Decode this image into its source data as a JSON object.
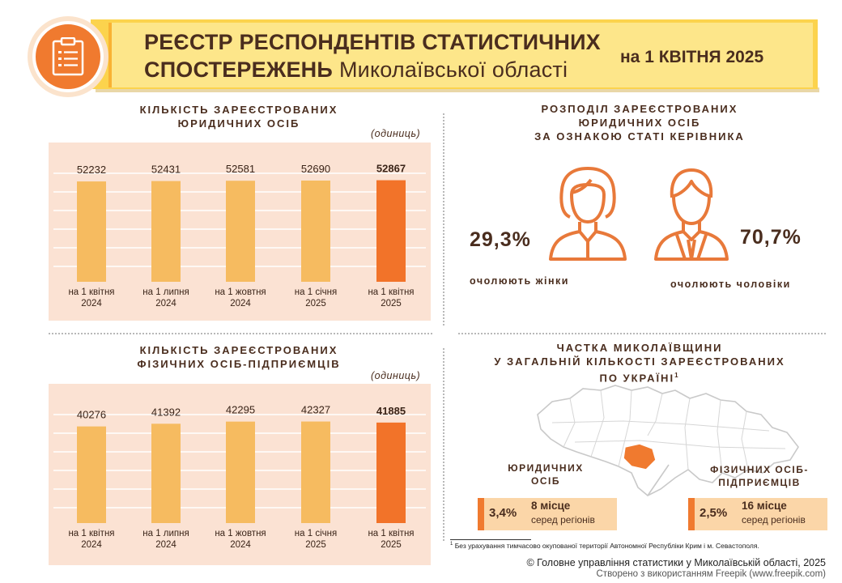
{
  "header": {
    "title_line1": "РЕЄСТР РЕСПОНДЕНТІВ СТАТИСТИЧНИХ",
    "title_line2_bold": "СПОСТЕРЕЖЕНЬ",
    "title_line2_regular": "Миколаївської області",
    "date": "на 1 КВІТНЯ 2025",
    "logo_icon": "clipboard-icon"
  },
  "legal_entities": {
    "heading_line1": "КІЛЬКІСТЬ ЗАРЕЄСТРОВАНИХ",
    "heading_line2": "ЮРИДИЧНИХ ОСІБ",
    "units": "(одиниць)"
  },
  "entrepreneurs": {
    "heading_line1": "КІЛЬКІСТЬ ЗАРЕЄСТРОВАНИХ",
    "heading_line2": "ФІЗИЧНИХ ОСІБ-ПІДПРИЄМЦІВ",
    "units": "(одиниць)"
  },
  "chart_data": [
    {
      "type": "bar",
      "categories": [
        [
          "на 1 квітня",
          "2024"
        ],
        [
          "на 1 липня",
          "2024"
        ],
        [
          "на 1 жовтня",
          "2024"
        ],
        [
          "на 1 січня",
          "2025"
        ],
        [
          "на 1 квітня",
          "2025"
        ]
      ],
      "values": [
        52232,
        52431,
        52581,
        52690,
        52867
      ],
      "value_labels": [
        "52232",
        "52431",
        "52581",
        "52690",
        "52867"
      ],
      "highlight_index": 4,
      "colors": {
        "bar": "#f6bb60",
        "highlight": "#f27329",
        "background": "#fbe2d3",
        "grid": "#ffffff"
      },
      "grid": true
    },
    {
      "type": "bar",
      "categories": [
        [
          "на 1 квітня",
          "2024"
        ],
        [
          "на 1 липня",
          "2024"
        ],
        [
          "на 1 жовтня",
          "2024"
        ],
        [
          "на 1 січня",
          "2025"
        ],
        [
          "на 1 квітня",
          "2025"
        ]
      ],
      "values": [
        40276,
        41392,
        42295,
        42327,
        41885
      ],
      "value_labels": [
        "40276",
        "41392",
        "42295",
        "42327",
        "41885"
      ],
      "highlight_index": 4,
      "colors": {
        "bar": "#f6bb60",
        "highlight": "#f27329",
        "background": "#fbe2d3",
        "grid": "#ffffff"
      },
      "grid": true
    }
  ],
  "gender": {
    "heading_line1": "РОЗПОДІЛ ЗАРЕЄСТРОВАНИХ",
    "heading_line2": "ЮРИДИЧНИХ ОСІБ",
    "heading_line3": "ЗА ОЗНАКОЮ СТАТІ КЕРІВНИКА",
    "female_pct": "29,3%",
    "female_caption": "очолюють жінки",
    "male_pct": "70,7%",
    "male_caption": "очолюють чоловіки",
    "female_icon": "woman-icon",
    "male_icon": "man-icon"
  },
  "share": {
    "heading_line1": "ЧАСТКА МИКОЛАЇВЩИНИ",
    "heading_line2": "У ЗАГАЛЬНІЙ КІЛЬКОСТІ ЗАРЕЄСТРОВАНИХ",
    "heading_line3": "ПО УКРАЇНІ",
    "heading_sup": "1",
    "legal_caption_line1": "ЮРИДИЧНИХ",
    "legal_caption_line2": "ОСІБ",
    "legal_pct": "3,4%",
    "legal_rank": "8 місце",
    "legal_rank_sub": "серед регіонів",
    "fop_caption_line1": "ФІЗИЧНИХ ОСІБ-",
    "fop_caption_line2": "ПІДПРИЄМЦІВ",
    "fop_pct": "2,5%",
    "fop_rank": "16 місце",
    "fop_rank_sub": "серед регіонів",
    "map_icon": "ukraine-map-icon"
  },
  "footer": {
    "footnote_sup": "1",
    "footnote": "Без урахування тимчасово окупованої території Автономної Республіки Крим і м. Севастополя.",
    "credit": "© Головне управління статистики у Миколаївській області, 2025",
    "freepik": "Створено з використанням Freepik (www.freepik.com)"
  }
}
